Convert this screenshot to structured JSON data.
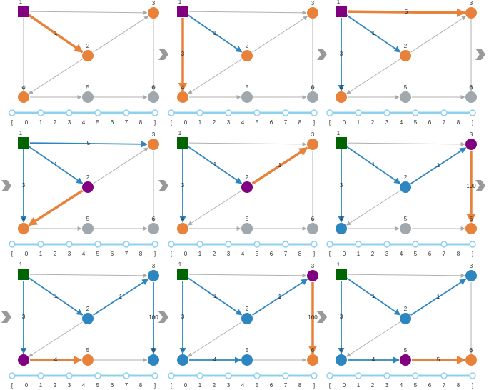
{
  "nodes": [
    {
      "label": "1"
    },
    {
      "label": "2"
    },
    {
      "label": "3"
    },
    {
      "label": "4"
    },
    {
      "label": "5"
    },
    {
      "label": "6"
    }
  ],
  "edges": [
    {
      "from": 0,
      "to": 1,
      "label": "1"
    },
    {
      "from": 0,
      "to": 2,
      "label": "5"
    },
    {
      "from": 0,
      "to": 3,
      "label": "3"
    },
    {
      "from": 1,
      "to": 2,
      "label": "1"
    },
    {
      "from": 1,
      "to": 3
    },
    {
      "from": 2,
      "to": 5,
      "label": "100"
    },
    {
      "from": 3,
      "to": 4,
      "label": "4"
    },
    {
      "from": 4,
      "to": 5,
      "label": "5"
    }
  ],
  "slider_labels": [
    "[",
    "0",
    "1",
    "2",
    "3",
    "4",
    "5",
    "6",
    "7",
    "8",
    "]"
  ],
  "panels": [
    {
      "node_colors": [
        "p",
        "o",
        "o",
        "o",
        "g",
        "g"
      ],
      "edge_colors": [
        "o",
        "g",
        "g",
        "g",
        "g",
        "g",
        "g",
        "g"
      ]
    },
    {
      "node_colors": [
        "p",
        "o",
        "o",
        "o",
        "g",
        "g"
      ],
      "edge_colors": [
        "b",
        "g",
        "o",
        "g",
        "g",
        "g",
        "g",
        "g"
      ]
    },
    {
      "node_colors": [
        "p",
        "o",
        "o",
        "o",
        "g",
        "g"
      ],
      "edge_colors": [
        "b",
        "o",
        "b",
        "g",
        "g",
        "g",
        "g",
        "g"
      ]
    },
    {
      "node_colors": [
        "G",
        "p",
        "o",
        "o",
        "g",
        "g"
      ],
      "edge_colors": [
        "b",
        "b",
        "b",
        "g",
        "o",
        "g",
        "g",
        "g"
      ]
    },
    {
      "node_colors": [
        "G",
        "p",
        "o",
        "o",
        "g",
        "g"
      ],
      "edge_colors": [
        "b",
        "g",
        "b",
        "o",
        "g",
        "g",
        "g",
        "g"
      ]
    },
    {
      "node_colors": [
        "G",
        "b",
        "p",
        "b",
        "g",
        "o"
      ],
      "edge_colors": [
        "b",
        "g",
        "b",
        "b",
        "g",
        "o",
        "g",
        "g"
      ]
    },
    {
      "node_colors": [
        "G",
        "b",
        "b",
        "p",
        "o",
        "b"
      ],
      "edge_colors": [
        "b",
        "g",
        "b",
        "b",
        "g",
        "b",
        "o",
        "g"
      ]
    },
    {
      "node_colors": [
        "G",
        "b",
        "p",
        "b",
        "b",
        "o"
      ],
      "edge_colors": [
        "b",
        "g",
        "b",
        "b",
        "g",
        "o",
        "b",
        "g"
      ]
    },
    {
      "node_colors": [
        "G",
        "b",
        "b",
        "b",
        "p",
        "o"
      ],
      "edge_colors": [
        "b",
        "g",
        "b",
        "b",
        "g",
        "g",
        "b",
        "o"
      ]
    }
  ]
}
